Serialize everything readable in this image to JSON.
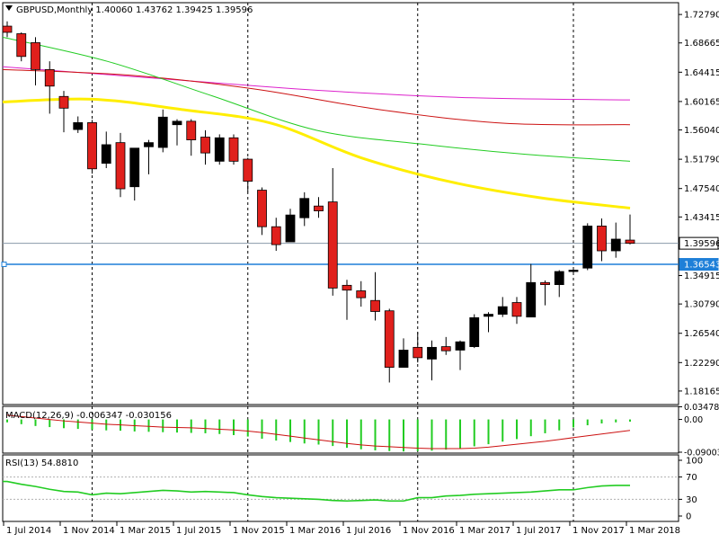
{
  "header": {
    "symbol_tf": "GBPUSD,Monthly",
    "ohlc": "1.40060 1.43762 1.39425 1.39596"
  },
  "macd_header": "MACD(12,26,9) -0.006347 -0.030156",
  "rsi_header": "RSI(13) 54.8810",
  "colors": {
    "bull_fill": "#000000",
    "bear_fill": "#e0201c",
    "wick": "#000000",
    "ma_yellow": "#ffee00",
    "ma_green": "#22cc22",
    "ma_red": "#cc1111",
    "ma_magenta": "#dd22cc",
    "hline_blue": "#1e7fd8",
    "hline_price": "#8a9aaa",
    "macd_hist": "#22cc22",
    "macd_signal": "#cc1111",
    "rsi_line": "#22cc22",
    "axis": "#000000",
    "vgrid": "#000000"
  },
  "chart_data": [
    {
      "type": "candlestick",
      "title": "GBPUSD,Monthly",
      "ylim": [
        1.162,
        1.745
      ],
      "yticks": [
        "1.72790",
        "1.68665",
        "1.64415",
        "1.60165",
        "1.56040",
        "1.51790",
        "1.47540",
        "1.43415",
        "1.39165",
        "1.34915",
        "1.30790",
        "1.26540",
        "1.22290",
        "1.18165"
      ],
      "ytick_values": [
        1.7279,
        1.68665,
        1.64415,
        1.60165,
        1.5604,
        1.5179,
        1.4754,
        1.43415,
        1.39165,
        1.34915,
        1.3079,
        1.2654,
        1.2229,
        1.18165
      ],
      "xtick_labels": [
        "1 Jul 2014",
        "1 Nov 2014",
        "1 Mar 2015",
        "1 Jul 2015",
        "1 Nov 2015",
        "1 Mar 2016",
        "1 Jul 2016",
        "1 Nov 2016",
        "1 Mar 2017",
        "1 Jul 2017",
        "1 Nov 2017",
        "1 Mar 2018"
      ],
      "xtick_index": [
        0,
        4,
        8,
        12,
        16,
        20,
        24,
        28,
        32,
        36,
        40,
        44
      ],
      "vlines_at_index": [
        6,
        17,
        29,
        40
      ],
      "candles": [
        [
          1.711,
          1.718,
          1.695,
          1.702
        ],
        [
          1.7,
          1.702,
          1.66,
          1.667
        ],
        [
          1.687,
          1.695,
          1.625,
          1.648
        ],
        [
          1.648,
          1.66,
          1.584,
          1.624
        ],
        [
          1.609,
          1.617,
          1.557,
          1.592
        ],
        [
          1.561,
          1.58,
          1.556,
          1.571
        ],
        [
          1.571,
          1.575,
          1.497,
          1.504
        ],
        [
          1.512,
          1.558,
          1.505,
          1.539
        ],
        [
          1.542,
          1.556,
          1.463,
          1.475
        ],
        [
          1.478,
          1.534,
          1.458,
          1.534
        ],
        [
          1.536,
          1.546,
          1.496,
          1.542
        ],
        [
          1.535,
          1.59,
          1.528,
          1.579
        ],
        [
          1.568,
          1.576,
          1.538,
          1.573
        ],
        [
          1.573,
          1.576,
          1.523,
          1.546
        ],
        [
          1.55,
          1.56,
          1.51,
          1.527
        ],
        [
          1.515,
          1.554,
          1.51,
          1.549
        ],
        [
          1.549,
          1.554,
          1.51,
          1.515
        ],
        [
          1.518,
          1.52,
          1.47,
          1.486
        ],
        [
          1.473,
          1.477,
          1.408,
          1.42
        ],
        [
          1.42,
          1.433,
          1.385,
          1.394
        ],
        [
          1.398,
          1.446,
          1.398,
          1.437
        ],
        [
          1.433,
          1.47,
          1.421,
          1.461
        ],
        [
          1.45,
          1.463,
          1.433,
          1.443
        ],
        [
          1.456,
          1.505,
          1.32,
          1.331
        ],
        [
          1.335,
          1.343,
          1.285,
          1.328
        ],
        [
          1.327,
          1.341,
          1.304,
          1.317
        ],
        [
          1.313,
          1.354,
          1.284,
          1.297
        ],
        [
          1.298,
          1.301,
          1.194,
          1.216
        ],
        [
          1.216,
          1.258,
          1.218,
          1.241
        ],
        [
          1.245,
          1.267,
          1.223,
          1.23
        ],
        [
          1.228,
          1.255,
          1.197,
          1.245
        ],
        [
          1.246,
          1.26,
          1.234,
          1.24
        ],
        [
          1.241,
          1.255,
          1.212,
          1.253
        ],
        [
          1.246,
          1.293,
          1.244,
          1.288
        ],
        [
          1.29,
          1.296,
          1.267,
          1.293
        ],
        [
          1.293,
          1.318,
          1.289,
          1.304
        ],
        [
          1.31,
          1.318,
          1.279,
          1.29
        ],
        [
          1.289,
          1.366,
          1.29,
          1.339
        ],
        [
          1.339,
          1.342,
          1.306,
          1.336
        ],
        [
          1.336,
          1.357,
          1.318,
          1.355
        ],
        [
          1.355,
          1.359,
          1.351,
          1.357
        ],
        [
          1.36,
          1.425,
          1.357,
          1.421
        ],
        [
          1.421,
          1.432,
          1.37,
          1.385
        ],
        [
          1.385,
          1.426,
          1.375,
          1.402
        ],
        [
          1.4006,
          1.43762,
          1.39425,
          1.39596
        ]
      ],
      "moving_averages": [
        {
          "color": "magenta",
          "values": [
            1.652,
            1.635,
            1.618,
            1.607,
            1.604
          ]
        },
        {
          "color": "red",
          "values": [
            1.648,
            1.64,
            1.62,
            1.59,
            1.57,
            1.568
          ]
        },
        {
          "color": "green",
          "values": [
            1.695,
            1.66,
            1.61,
            1.56,
            1.54,
            1.525,
            1.515
          ]
        },
        {
          "color": "yellow",
          "values": [
            1.601,
            1.605,
            1.59,
            1.57,
            1.52,
            1.485,
            1.462,
            1.447
          ]
        }
      ],
      "hlines": [
        {
          "value": 1.39596,
          "label": "1.39596"
        },
        {
          "value": 1.36543,
          "label": "1.36543"
        }
      ]
    },
    {
      "type": "bar+line",
      "title": "MACD(12,26,9) -0.006347 -0.030156",
      "ylim": [
        -0.0925,
        0.036
      ],
      "yticks": [
        "0.034788",
        "0.00",
        "-0.090038"
      ],
      "ytick_values": [
        0.034788,
        0.0,
        -0.090038
      ],
      "histogram": [
        -0.008,
        -0.013,
        -0.018,
        -0.021,
        -0.024,
        -0.026,
        -0.028,
        -0.03,
        -0.031,
        -0.033,
        -0.034,
        -0.035,
        -0.036,
        -0.037,
        -0.038,
        -0.04,
        -0.043,
        -0.047,
        -0.053,
        -0.058,
        -0.062,
        -0.066,
        -0.069,
        -0.073,
        -0.078,
        -0.082,
        -0.085,
        -0.087,
        -0.088,
        -0.087,
        -0.086,
        -0.083,
        -0.079,
        -0.074,
        -0.068,
        -0.061,
        -0.054,
        -0.046,
        -0.038,
        -0.03,
        -0.022,
        -0.016,
        -0.011,
        -0.008,
        -0.006
      ],
      "signal": [
        0.012,
        0.008,
        0.004,
        0.0,
        -0.004,
        -0.007,
        -0.01,
        -0.013,
        -0.015,
        -0.017,
        -0.019,
        -0.021,
        -0.022,
        -0.023,
        -0.025,
        -0.027,
        -0.029,
        -0.032,
        -0.036,
        -0.041,
        -0.046,
        -0.051,
        -0.056,
        -0.061,
        -0.066,
        -0.07,
        -0.073,
        -0.075,
        -0.077,
        -0.079,
        -0.08,
        -0.08,
        -0.08,
        -0.079,
        -0.076,
        -0.072,
        -0.068,
        -0.064,
        -0.06,
        -0.055,
        -0.05,
        -0.045,
        -0.04,
        -0.035,
        -0.03
      ]
    },
    {
      "type": "line",
      "title": "RSI(13) 54.8810",
      "ylim": [
        0,
        100
      ],
      "yticks": [
        "100",
        "70",
        "30",
        "0"
      ],
      "ytick_values": [
        100,
        70,
        30,
        0
      ],
      "levels": [
        70,
        30
      ],
      "values": [
        62,
        57,
        53,
        48,
        44,
        43,
        38,
        41,
        40,
        42,
        44,
        46,
        45,
        43,
        44,
        43,
        42,
        38,
        35,
        33,
        32,
        31,
        30,
        28,
        27,
        28,
        29,
        27,
        27,
        33,
        33,
        36,
        37,
        39,
        40,
        41,
        42,
        43,
        45,
        47,
        47,
        51,
        54,
        55,
        55
      ]
    }
  ]
}
